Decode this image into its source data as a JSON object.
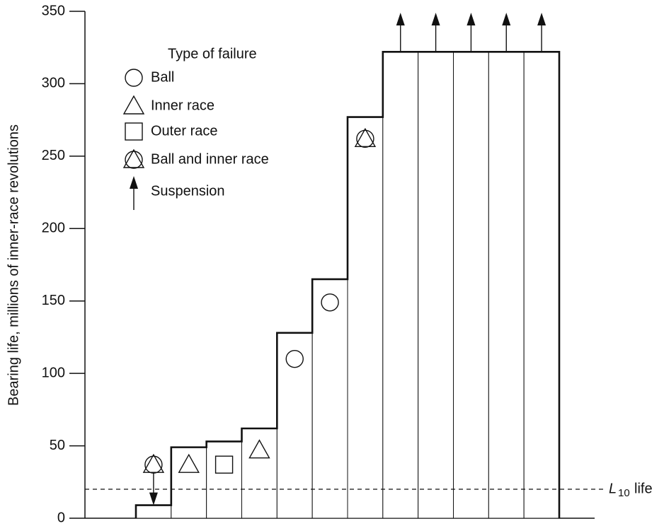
{
  "chart_data": {
    "type": "bar",
    "y_label": "Bearing life, millions of inner-race revolutions",
    "categories": [
      null,
      null,
      null,
      null,
      null,
      null,
      null,
      null,
      null,
      null,
      null,
      null
    ],
    "values": [
      9,
      49,
      53,
      62,
      128,
      165,
      277,
      322,
      322,
      322,
      322,
      322
    ],
    "color": "#ffffff",
    "marker_values": [
      37,
      37,
      37,
      47,
      110,
      149,
      262,
      null,
      null,
      null,
      null,
      null
    ],
    "marker_types": [
      3,
      1,
      2,
      1,
      0,
      0,
      3,
      4,
      4,
      4,
      4,
      4
    ],
    "ylim": [
      0,
      350
    ],
    "yticks": [
      0,
      50,
      100,
      150,
      200,
      250,
      300,
      350
    ],
    "legend": {
      "title": "Type of failure",
      "items": [
        "Ball",
        "Inner race",
        "Outer race",
        "Ball and inner race",
        "Suspension"
      ]
    },
    "reference_line": {
      "value": 20,
      "label": "L",
      "label_sub": "10",
      "label_rest": "life"
    }
  }
}
